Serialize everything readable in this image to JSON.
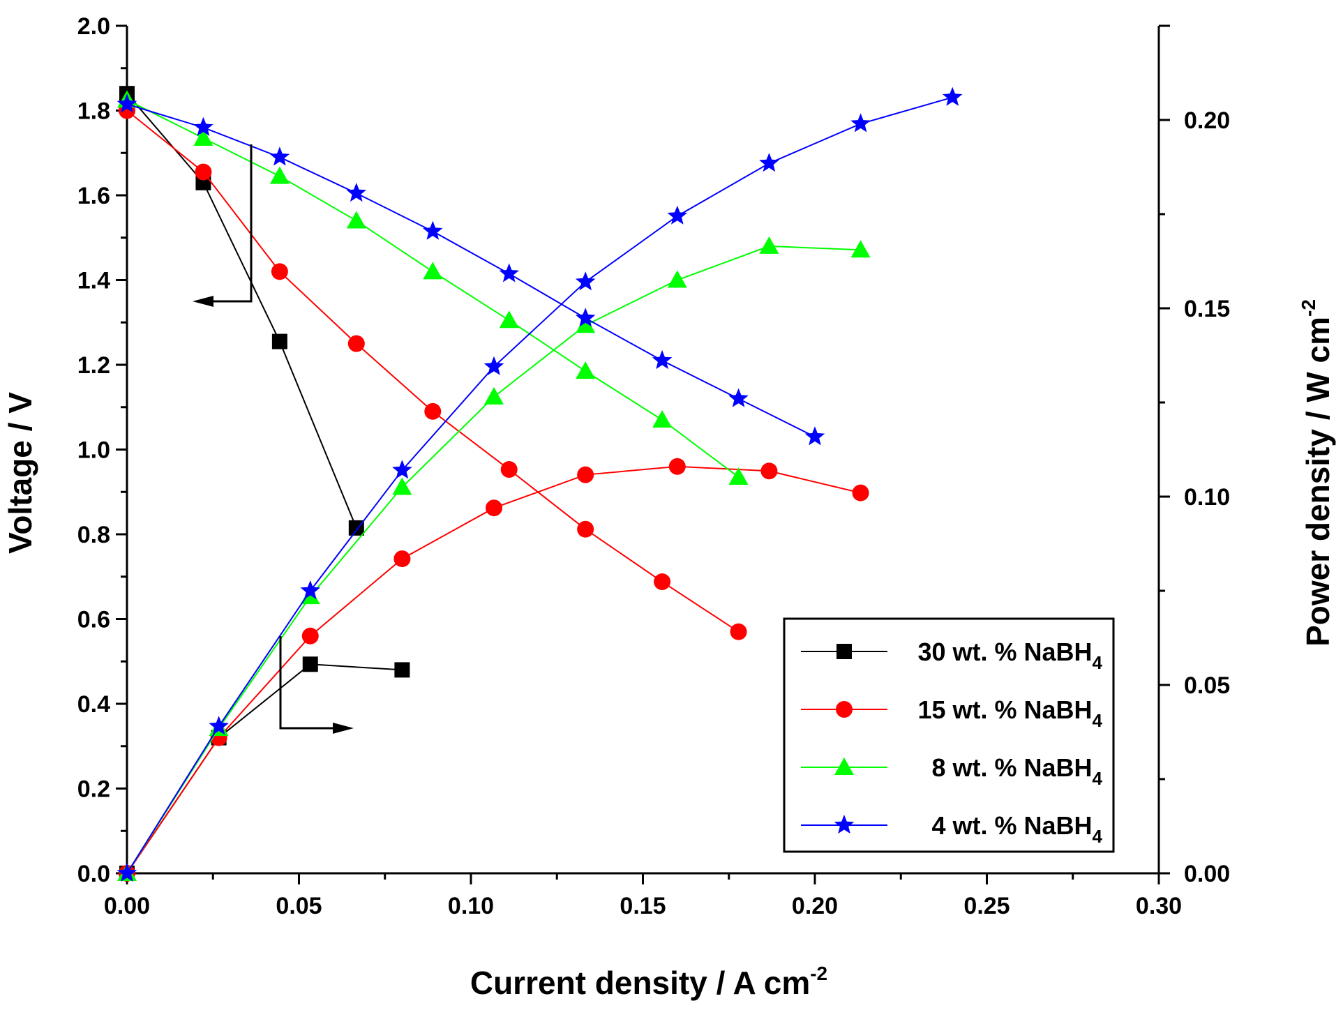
{
  "chart_data": {
    "type": "line",
    "title": "",
    "xlabel": {
      "text": "Current density / A cm",
      "sup": "-2"
    },
    "ylabel_left": "Voltage / V",
    "ylabel_right": {
      "text": "Power density / W cm",
      "sup": "-2"
    },
    "xlim": [
      0.0,
      0.3
    ],
    "ylim_left": [
      0.0,
      2.0
    ],
    "ylim_right": [
      0.0,
      0.225
    ],
    "x_ticks": [
      "0.00",
      "0.05",
      "0.10",
      "0.15",
      "0.20",
      "0.25",
      "0.30"
    ],
    "y_left_ticks": [
      "0.0",
      "0.2",
      "0.4",
      "0.6",
      "0.8",
      "1.0",
      "1.2",
      "1.4",
      "1.6",
      "1.8",
      "2.0"
    ],
    "y_right_ticks": [
      "0.00",
      "0.05",
      "0.10",
      "0.15",
      "0.20"
    ],
    "grid": false,
    "legend_position": "bottom-right",
    "series": [
      {
        "name_main": "30 wt. % NaBH",
        "name_sub": "4",
        "color": "#000000",
        "marker": "square",
        "voltage": {
          "x": [
            0.0,
            0.0222,
            0.0444,
            0.0667
          ],
          "y": [
            1.84,
            1.63,
            1.255,
            0.815
          ]
        },
        "power": {
          "x": [
            0.0,
            0.0267,
            0.0533,
            0.08
          ],
          "y": [
            0.0,
            0.036,
            0.0555,
            0.054
          ]
        }
      },
      {
        "name_main": "15 wt. % NaBH",
        "name_sub": "4",
        "color": "#ff0000",
        "marker": "circle",
        "voltage": {
          "x": [
            0.0,
            0.0222,
            0.0444,
            0.0667,
            0.0889,
            0.1111,
            0.1333,
            0.1556,
            0.1778
          ],
          "y": [
            1.8,
            1.655,
            1.42,
            1.25,
            1.09,
            0.953,
            0.812,
            0.688,
            0.57
          ]
        },
        "power": {
          "x": [
            0.0,
            0.0267,
            0.0533,
            0.08,
            0.1067,
            0.1333,
            0.16,
            0.1867,
            0.2133
          ],
          "y": [
            0.0,
            0.036,
            0.063,
            0.0835,
            0.097,
            0.1058,
            0.108,
            0.1068,
            0.101
          ]
        }
      },
      {
        "name_main": "8 wt. % NaBH",
        "name_sub": "4",
        "color": "#00ff00",
        "marker": "triangle",
        "voltage": {
          "x": [
            0.0,
            0.0222,
            0.0444,
            0.0667,
            0.0889,
            0.1111,
            0.1333,
            0.1556,
            0.1778
          ],
          "y": [
            1.825,
            1.735,
            1.645,
            1.54,
            1.42,
            1.305,
            1.185,
            1.07,
            0.935
          ]
        },
        "power": {
          "x": [
            0.0,
            0.0267,
            0.0533,
            0.08,
            0.1067,
            0.1333,
            0.16,
            0.1867,
            0.2133
          ],
          "y": [
            0.0,
            0.0385,
            0.0735,
            0.1025,
            0.1265,
            0.1455,
            0.1575,
            0.1665,
            0.1655
          ]
        }
      },
      {
        "name_main": "4 wt. % NaBH",
        "name_sub": "4",
        "color": "#0000ff",
        "marker": "star",
        "voltage": {
          "x": [
            0.0,
            0.0222,
            0.0444,
            0.0667,
            0.0889,
            0.1111,
            0.1333,
            0.1556,
            0.1778,
            0.2
          ],
          "y": [
            1.815,
            1.76,
            1.69,
            1.605,
            1.515,
            1.415,
            1.31,
            1.21,
            1.12,
            1.03
          ]
        },
        "power": {
          "x": [
            0.0,
            0.0267,
            0.0533,
            0.08,
            0.1067,
            0.1333,
            0.16,
            0.1867,
            0.2133,
            0.24
          ],
          "y": [
            0.0,
            0.039,
            0.075,
            0.107,
            0.1345,
            0.157,
            0.1745,
            0.1885,
            0.199,
            0.206
          ]
        }
      }
    ]
  }
}
